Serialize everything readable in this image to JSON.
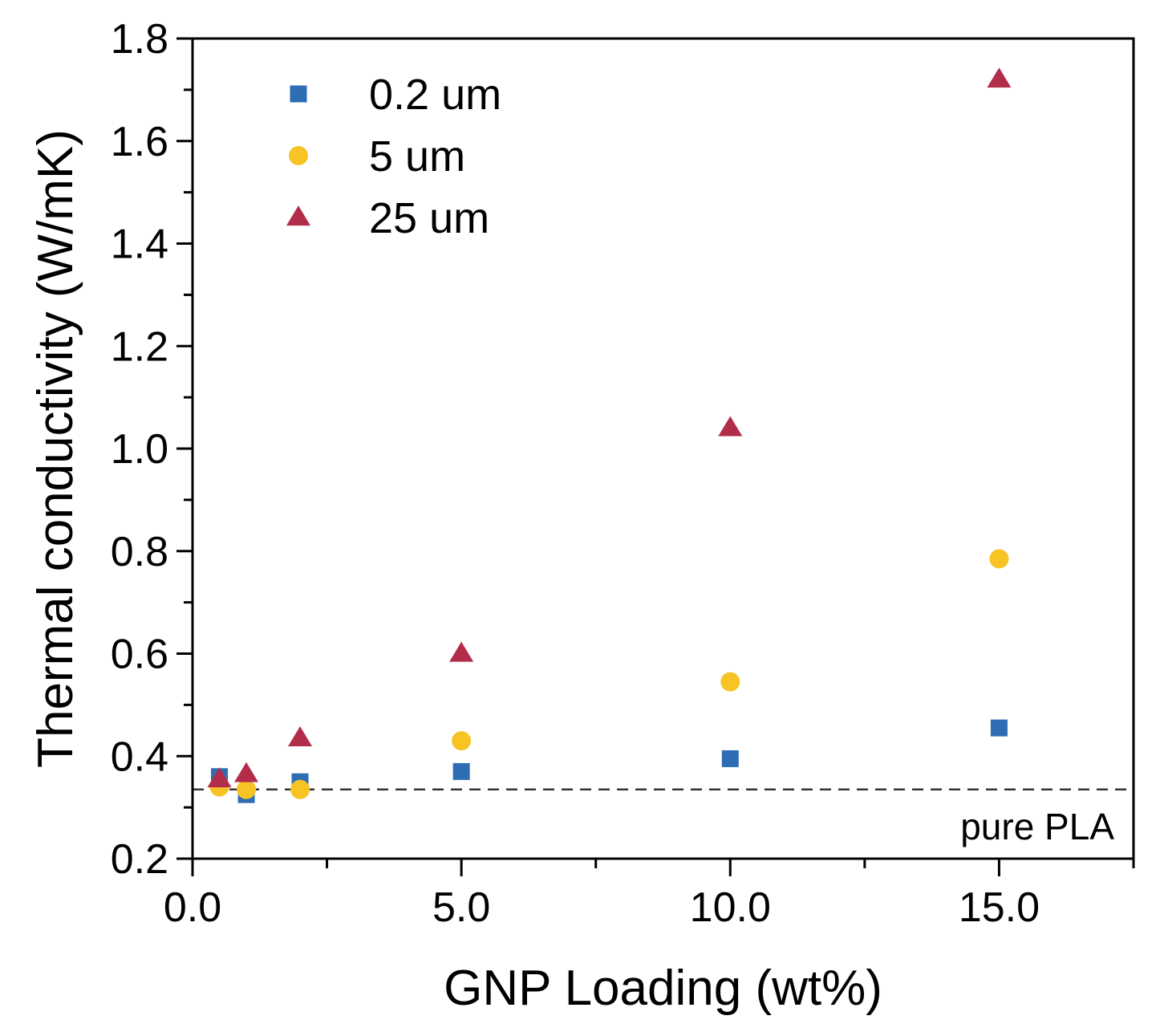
{
  "chart_data": {
    "type": "scatter",
    "title": "",
    "xlabel": "GNP Loading (wt%)",
    "ylabel": "Thermal conductivity (W/mK)",
    "xlim": [
      0,
      17.5
    ],
    "ylim": [
      0.2,
      1.8
    ],
    "xticks": [
      0,
      5,
      10,
      15
    ],
    "xtick_labels": [
      "0.0",
      "5.0",
      "10.0",
      "15.0"
    ],
    "xminor_ticks": [
      2.5,
      7.5,
      12.5,
      17.5
    ],
    "yticks": [
      0.2,
      0.4,
      0.6,
      0.8,
      1.0,
      1.2,
      1.4,
      1.6,
      1.8
    ],
    "ytick_labels": [
      "0.2",
      "0.4",
      "0.6",
      "0.8",
      "1.0",
      "1.2",
      "1.4",
      "1.6",
      "1.8"
    ],
    "yminor_ticks": [
      0.3,
      0.5,
      0.7,
      0.9,
      1.1,
      1.3,
      1.5,
      1.7
    ],
    "grid": false,
    "legend_position": "top-left",
    "series": [
      {
        "name": "0.2 um",
        "marker": "square",
        "color": "#2e6db4",
        "x": [
          0.5,
          1,
          2,
          5,
          10,
          15
        ],
        "y": [
          0.36,
          0.325,
          0.35,
          0.37,
          0.395,
          0.455
        ]
      },
      {
        "name": "5 um",
        "marker": "circle",
        "color": "#f7c325",
        "x": [
          0.5,
          1,
          2,
          5,
          10,
          15
        ],
        "y": [
          0.34,
          0.335,
          0.335,
          0.43,
          0.545,
          0.785
        ]
      },
      {
        "name": "25 um",
        "marker": "triangle",
        "color": "#b22d4a",
        "x": [
          0.5,
          1,
          2,
          5,
          10,
          15
        ],
        "y": [
          0.355,
          0.365,
          0.435,
          0.6,
          1.04,
          1.72
        ]
      }
    ],
    "reference_line": {
      "y": 0.335,
      "label": "pure PLA",
      "style": "dashed"
    }
  }
}
